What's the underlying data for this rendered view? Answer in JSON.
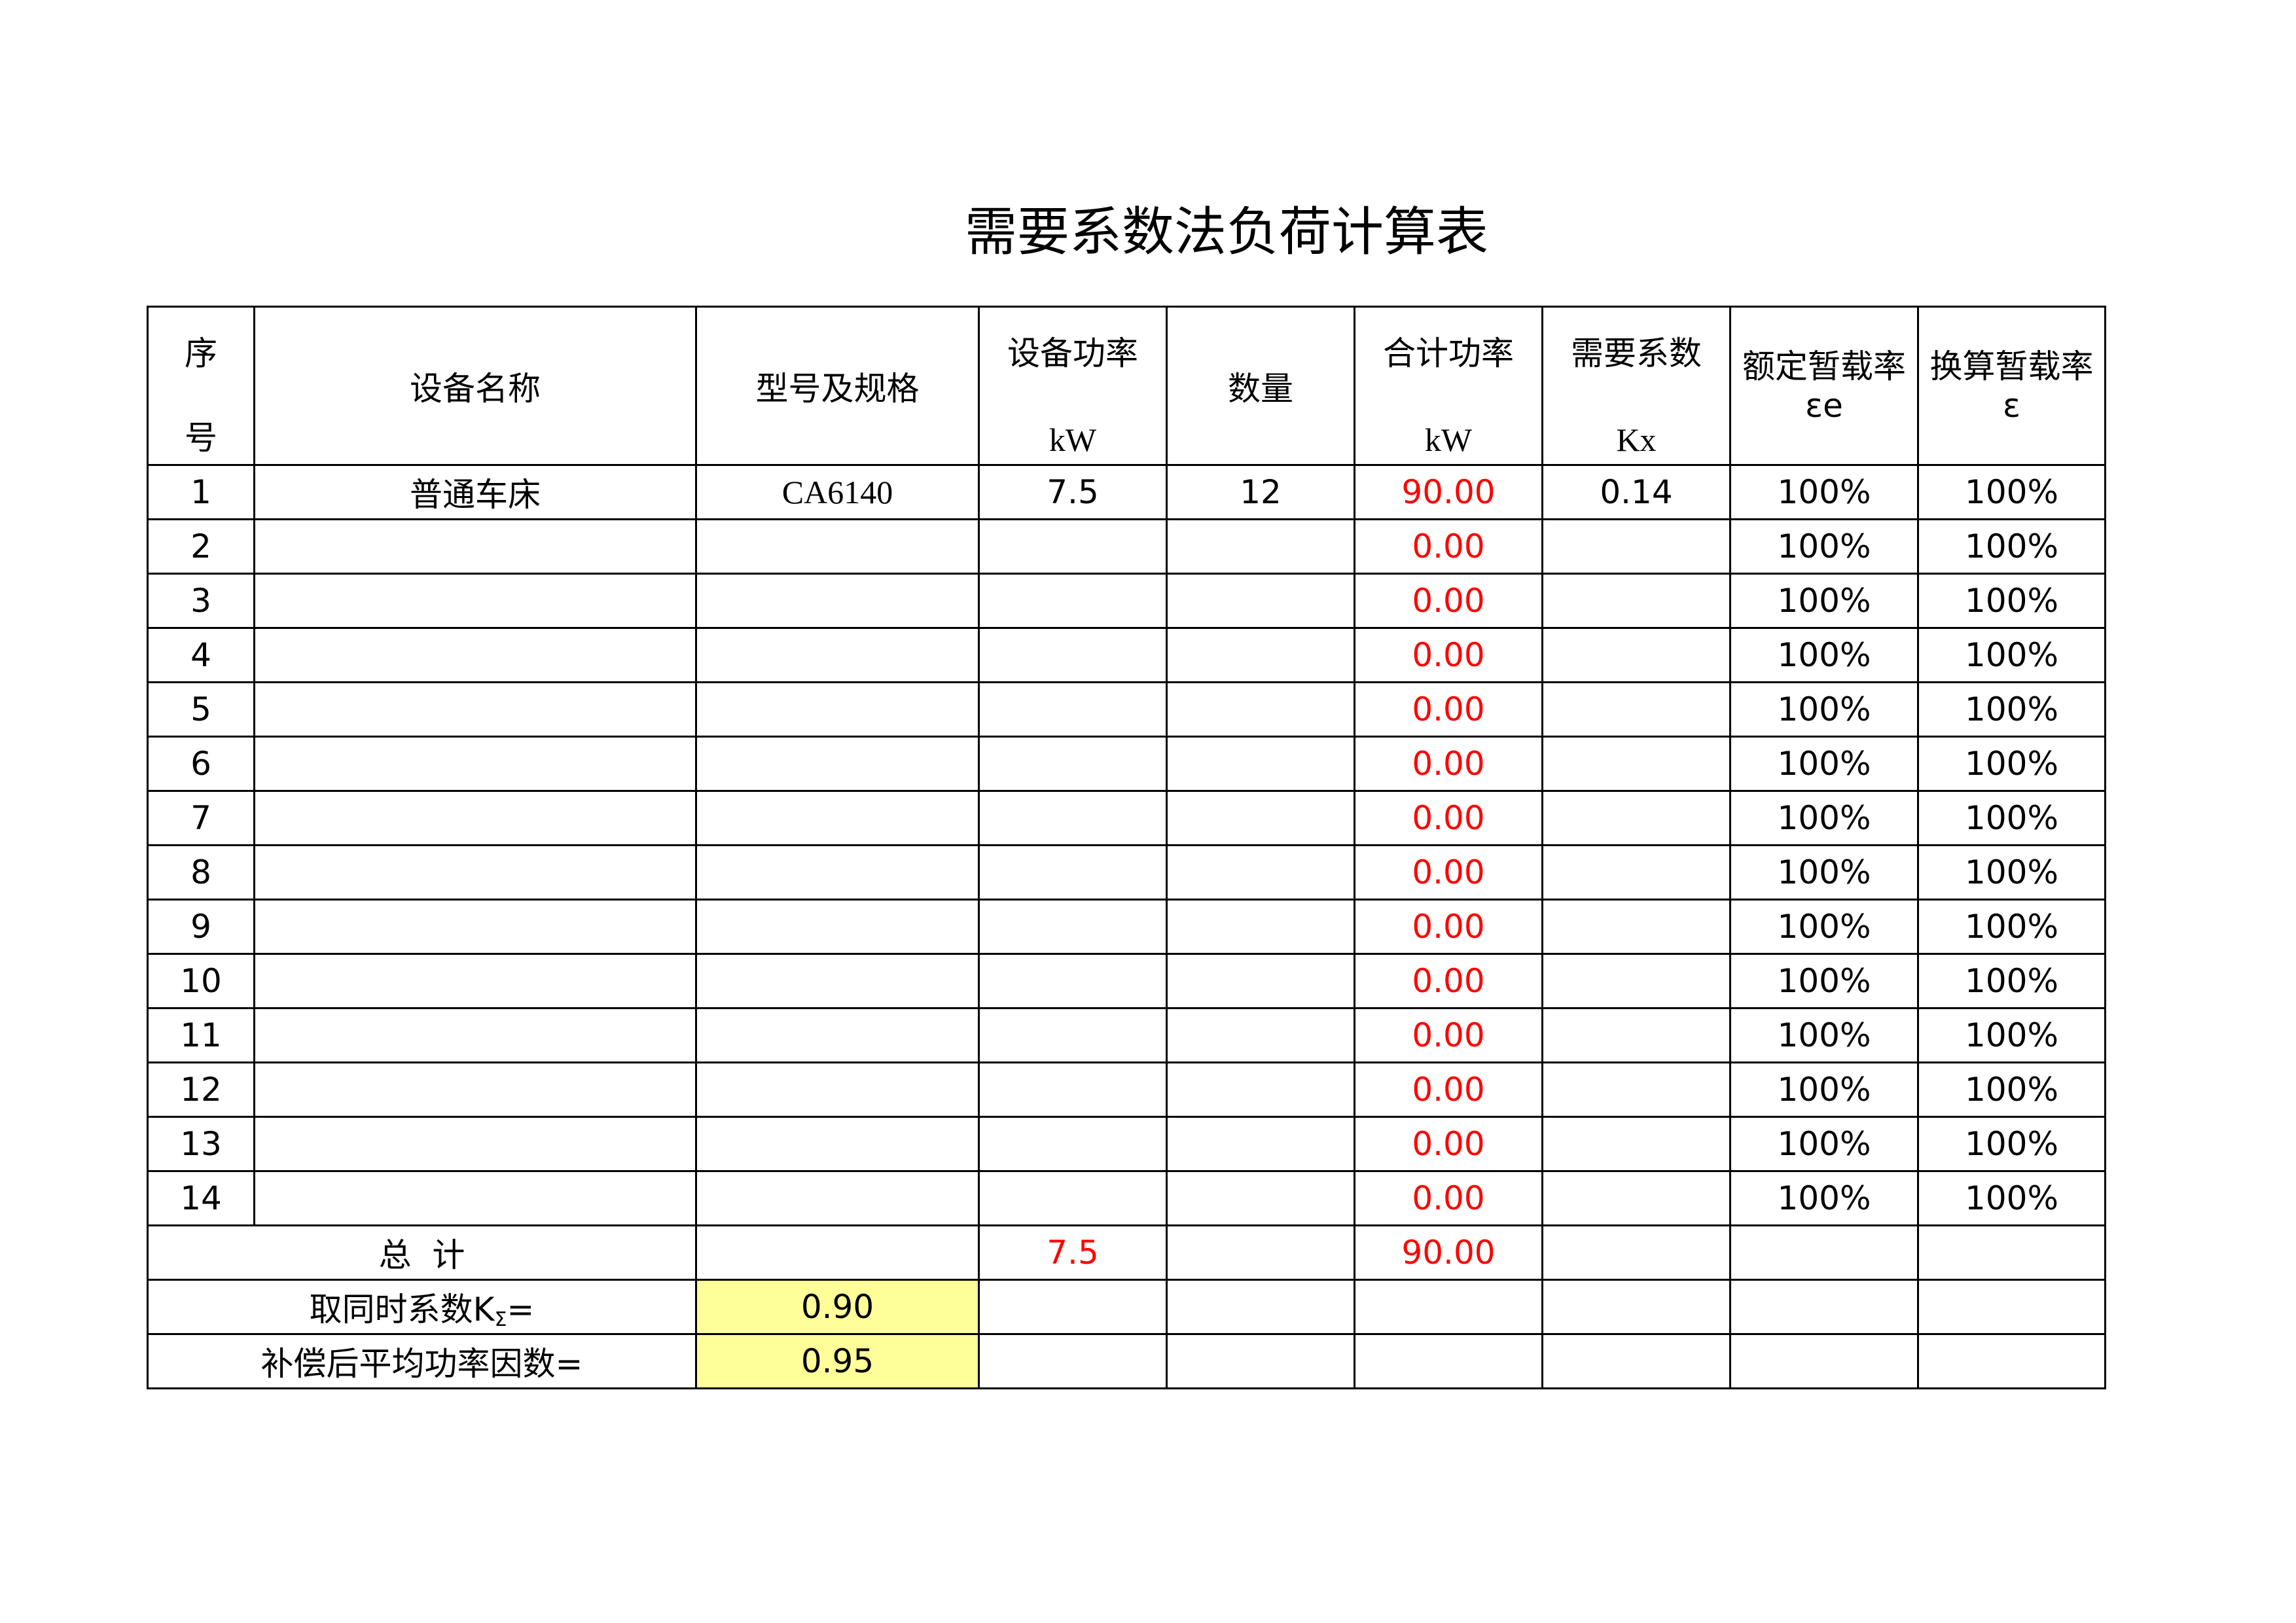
{
  "title": "需要系数法负荷计算表",
  "headers": {
    "seq_top": "序",
    "seq_bottom": "号",
    "name": "设备名称",
    "model": "型号及规格",
    "power_label": "设备功率",
    "power_unit": "kW",
    "qty": "数量",
    "total_power_label": "合计功率",
    "total_power_unit": "kW",
    "kx_label": "需要系数",
    "kx_unit": "Kx",
    "rated_label": "额定暂载率",
    "rated_sym": "εe",
    "conv_label": "换算暂载率",
    "conv_sym": "ε"
  },
  "rows": [
    {
      "no": "1",
      "name": "普通车床",
      "model": "CA6140",
      "power": "7.5",
      "qty": "12",
      "total": "90.00",
      "kx": "0.14",
      "rated": "100%",
      "conv": "100%"
    },
    {
      "no": "2",
      "name": "",
      "model": "",
      "power": "",
      "qty": "",
      "total": "0.00",
      "kx": "",
      "rated": "100%",
      "conv": "100%"
    },
    {
      "no": "3",
      "name": "",
      "model": "",
      "power": "",
      "qty": "",
      "total": "0.00",
      "kx": "",
      "rated": "100%",
      "conv": "100%"
    },
    {
      "no": "4",
      "name": "",
      "model": "",
      "power": "",
      "qty": "",
      "total": "0.00",
      "kx": "",
      "rated": "100%",
      "conv": "100%"
    },
    {
      "no": "5",
      "name": "",
      "model": "",
      "power": "",
      "qty": "",
      "total": "0.00",
      "kx": "",
      "rated": "100%",
      "conv": "100%"
    },
    {
      "no": "6",
      "name": "",
      "model": "",
      "power": "",
      "qty": "",
      "total": "0.00",
      "kx": "",
      "rated": "100%",
      "conv": "100%"
    },
    {
      "no": "7",
      "name": "",
      "model": "",
      "power": "",
      "qty": "",
      "total": "0.00",
      "kx": "",
      "rated": "100%",
      "conv": "100%"
    },
    {
      "no": "8",
      "name": "",
      "model": "",
      "power": "",
      "qty": "",
      "total": "0.00",
      "kx": "",
      "rated": "100%",
      "conv": "100%"
    },
    {
      "no": "9",
      "name": "",
      "model": "",
      "power": "",
      "qty": "",
      "total": "0.00",
      "kx": "",
      "rated": "100%",
      "conv": "100%"
    },
    {
      "no": "10",
      "name": "",
      "model": "",
      "power": "",
      "qty": "",
      "total": "0.00",
      "kx": "",
      "rated": "100%",
      "conv": "100%"
    },
    {
      "no": "11",
      "name": "",
      "model": "",
      "power": "",
      "qty": "",
      "total": "0.00",
      "kx": "",
      "rated": "100%",
      "conv": "100%"
    },
    {
      "no": "12",
      "name": "",
      "model": "",
      "power": "",
      "qty": "",
      "total": "0.00",
      "kx": "",
      "rated": "100%",
      "conv": "100%"
    },
    {
      "no": "13",
      "name": "",
      "model": "",
      "power": "",
      "qty": "",
      "total": "0.00",
      "kx": "",
      "rated": "100%",
      "conv": "100%"
    },
    {
      "no": "14",
      "name": "",
      "model": "",
      "power": "",
      "qty": "",
      "total": "0.00",
      "kx": "",
      "rated": "100%",
      "conv": "100%"
    }
  ],
  "totals": {
    "label": "总  计",
    "power": "7.5",
    "total": "90.00"
  },
  "simultaneity": {
    "label": "取同时系数K",
    "label_sub": "Σ",
    "label_suffix": "=",
    "value": "0.90"
  },
  "power_factor": {
    "label": "补偿后平均功率因数=",
    "value": "0.95"
  },
  "colors": {
    "computed_text": "#ff0000",
    "input_fill": "#ffff99"
  }
}
